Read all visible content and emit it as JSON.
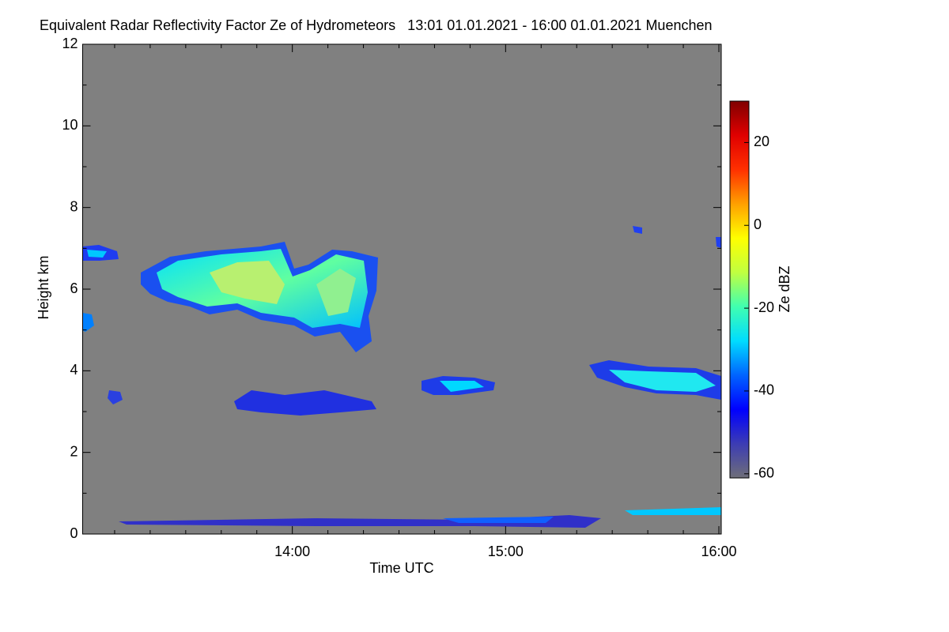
{
  "chart_data": {
    "type": "heatmap",
    "title": "Equivalent Radar Reflectivity Factor Ze of Hydrometeors   13:01 01.01.2021 - 16:00 01.01.2021 Muenchen",
    "x_label": "Time UTC",
    "y_label": "Height km",
    "colorbar_label": "Ze dBZ",
    "xlim": [
      781,
      960
    ],
    "xticks": [
      {
        "value": 840,
        "label": "14:00"
      },
      {
        "value": 900,
        "label": "15:00"
      },
      {
        "value": 960,
        "label": "16:00"
      }
    ],
    "xminorticks": [
      790,
      800,
      810,
      820,
      830,
      850,
      860,
      870,
      880,
      890,
      910,
      920,
      930,
      940,
      950
    ],
    "ylim": [
      0,
      12
    ],
    "yticks": [
      0,
      2,
      4,
      6,
      8,
      10,
      12
    ],
    "yminorticks": [
      1,
      3,
      5,
      7,
      9,
      11
    ],
    "clim": [
      -61,
      30
    ],
    "cticks": [
      -60,
      -40,
      -20,
      0,
      20
    ],
    "colormap": [
      "#6e6e78",
      "#3c3cb4",
      "#0000ff",
      "#0064ff",
      "#00dcff",
      "#40ffb0",
      "#c0ff40",
      "#ffff00",
      "#ffa000",
      "#ff3000",
      "#e00000",
      "#800000"
    ],
    "background": "#808080"
  }
}
